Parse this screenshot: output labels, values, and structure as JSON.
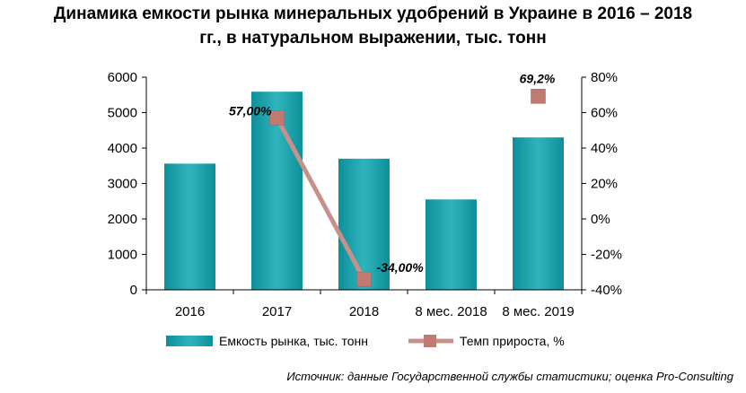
{
  "title_line1": "Динамика емкости рынка минеральных удобрений в Украине в 2016 – 2018",
  "title_line2": "гг., в натуральном выражении, тыс. тонн",
  "source": "Источник: данные Государственной службы статистики; оценка Pro-Consulting",
  "colors": {
    "bar": "#13a0ac",
    "bar_light": "#4fc4cc",
    "line": "#c8908a",
    "marker": "#c07a72",
    "axis": "#000000"
  },
  "chart_data": {
    "type": "bar",
    "categories": [
      "2016",
      "2017",
      "2018",
      "8 мес. 2018",
      "8 мес. 2019"
    ],
    "series": [
      {
        "name": "Емкость рынка, тыс. тонн",
        "type": "bar",
        "axis": "left",
        "values": [
          3560,
          5590,
          3700,
          2550,
          4300
        ]
      },
      {
        "name": "Темп прироста, %",
        "type": "line",
        "axis": "right",
        "values": [
          null,
          57.0,
          -34.0,
          null,
          69.2
        ],
        "labels": [
          "",
          "57,00%",
          "-34,00%",
          "",
          "69,2%"
        ],
        "connected": [
          false,
          true,
          true,
          false,
          false
        ]
      }
    ],
    "y_left": {
      "min": 0,
      "max": 6000,
      "step": 1000,
      "ticks": [
        "0",
        "1000",
        "2000",
        "3000",
        "4000",
        "5000",
        "6000"
      ]
    },
    "y_right": {
      "min": -40,
      "max": 80,
      "step": 20,
      "ticks": [
        "-40%",
        "-20%",
        "0%",
        "20%",
        "40%",
        "60%",
        "80%"
      ]
    },
    "legend_position": "bottom",
    "grid": false
  }
}
